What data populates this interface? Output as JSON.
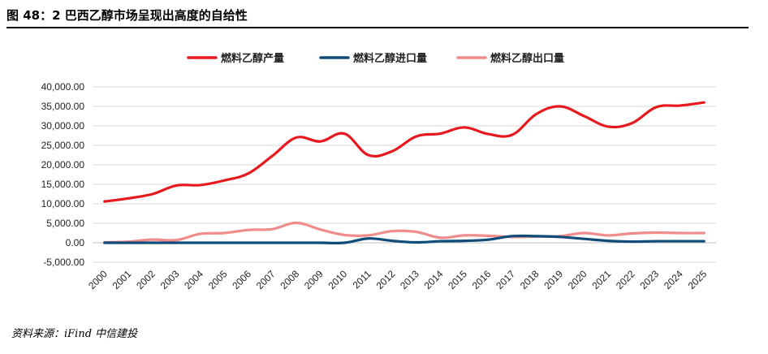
{
  "figure": {
    "title": "图 48：2 巴西乙醇市场呈现出高度的自给性",
    "source": "资料来源：iFind  中信建投"
  },
  "chart_data": {
    "type": "line",
    "title": "图 48：2 巴西乙醇市场呈现出高度的自给性",
    "xlabel": "",
    "ylabel": "",
    "ylim": [
      -5000,
      40000
    ],
    "yticks": [
      -5000,
      0,
      5000,
      10000,
      15000,
      20000,
      25000,
      30000,
      35000,
      40000
    ],
    "ytick_labels": [
      "-5,000.00",
      "0.00",
      "5,000.00",
      "10,000.00",
      "15,000.00",
      "20,000.00",
      "25,000.00",
      "30,000.00",
      "35,000.00",
      "40,000.00"
    ],
    "grid": "horizontal",
    "legend_position": "top",
    "x": [
      "2000",
      "2001",
      "2002",
      "2003",
      "2004",
      "2005",
      "2006",
      "2007",
      "2008",
      "2009",
      "2010",
      "2011",
      "2012",
      "2013",
      "2014",
      "2015",
      "2016",
      "2017",
      "2018",
      "2019",
      "2020",
      "2021",
      "2022",
      "2023",
      "2024",
      "2025"
    ],
    "series": [
      {
        "name": "燃料乙醇产量",
        "color": "#e8191e",
        "values": [
          10600,
          11400,
          12500,
          14700,
          14800,
          16000,
          17800,
          22300,
          27000,
          26000,
          28000,
          22500,
          23500,
          27300,
          28000,
          29600,
          27900,
          27700,
          33000,
          35000,
          32500,
          29800,
          30700,
          34800,
          35200,
          36000
        ]
      },
      {
        "name": "燃料乙醇进口量",
        "color": "#0f4c7a",
        "values": [
          0,
          0,
          0,
          0,
          0,
          0,
          0,
          0,
          0,
          0,
          0,
          1100,
          500,
          100,
          400,
          500,
          800,
          1700,
          1700,
          1500,
          1000,
          500,
          300,
          400,
          400,
          400
        ]
      },
      {
        "name": "燃料乙醇出口量",
        "color": "#f08c8c",
        "values": [
          100,
          300,
          800,
          700,
          2300,
          2500,
          3300,
          3500,
          5100,
          3400,
          2000,
          1900,
          3000,
          2800,
          1300,
          1900,
          1800,
          1500,
          1600,
          1700,
          2500,
          1900,
          2400,
          2600,
          2500,
          2500
        ]
      }
    ]
  }
}
